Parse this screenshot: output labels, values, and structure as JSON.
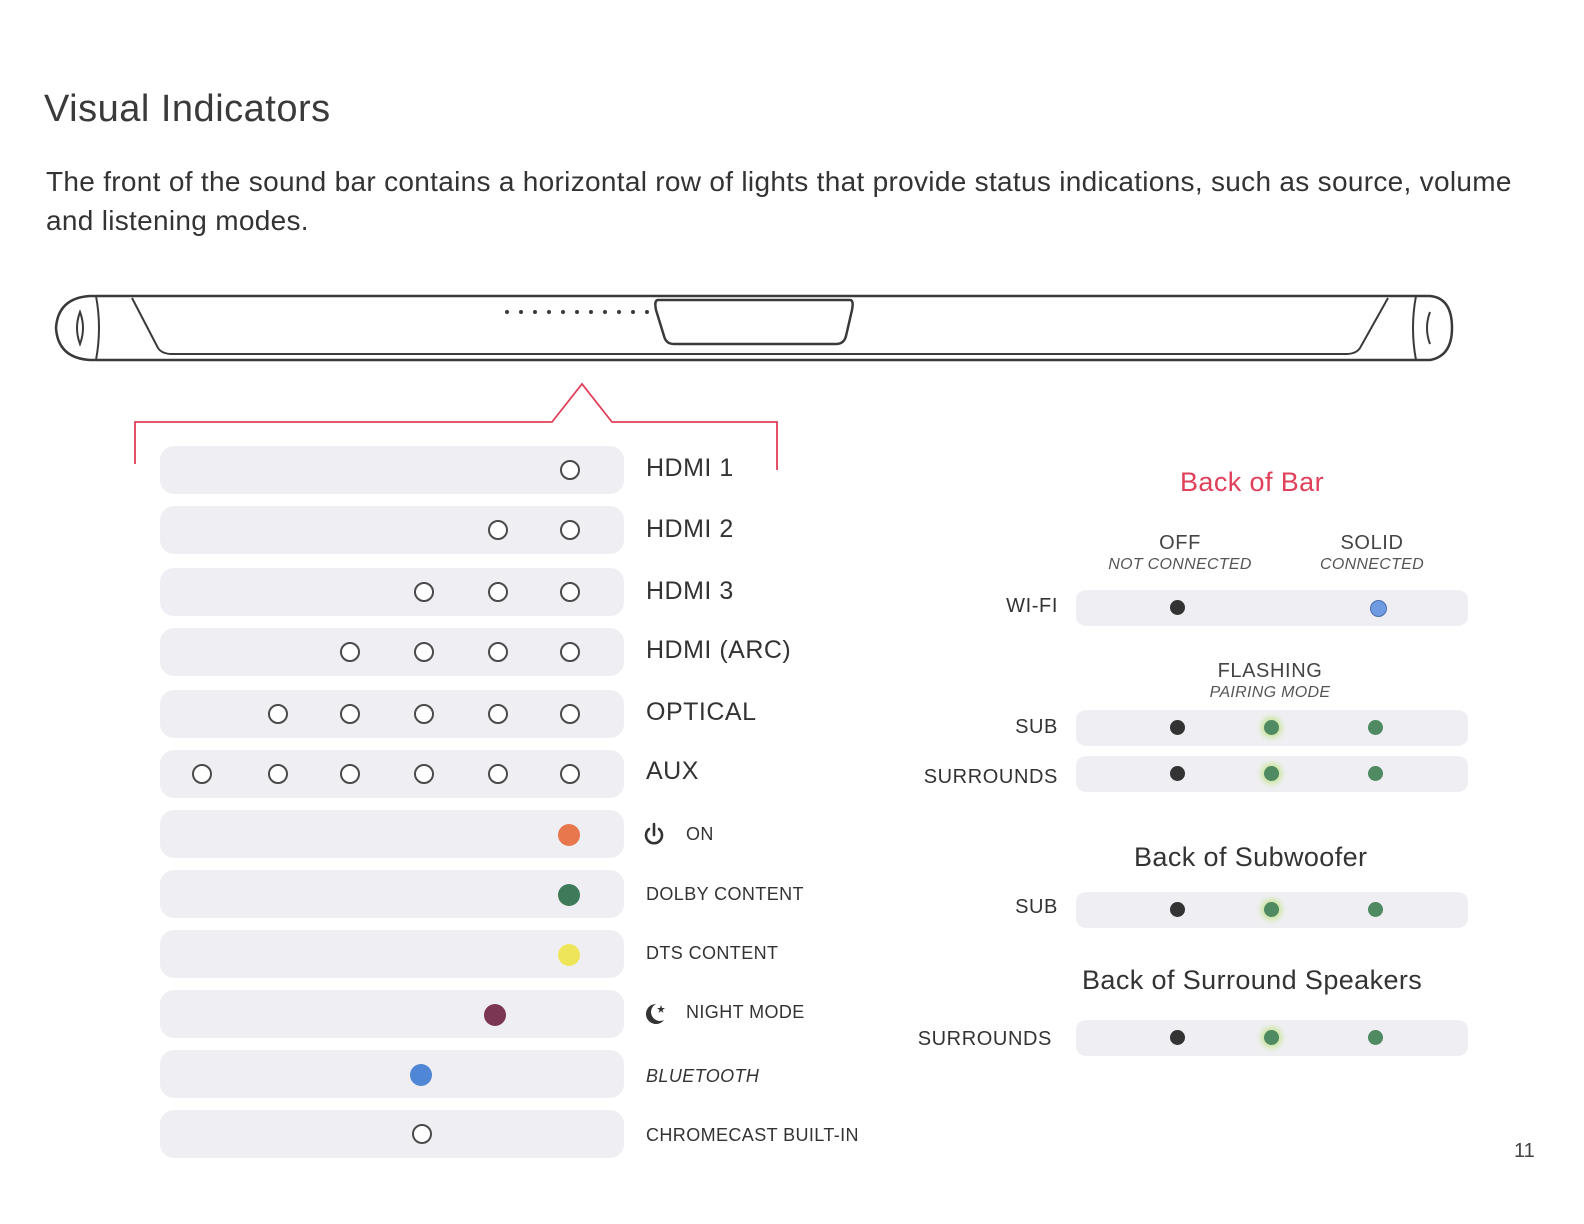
{
  "title": "Visual Indicators",
  "intro": "The front of the sound bar contains a horizontal row of lights that provide status indications, such as source, volume and listening modes.",
  "front_rows": [
    {
      "label": "HDMI 1"
    },
    {
      "label": "HDMI 2"
    },
    {
      "label": "HDMI 3"
    },
    {
      "label": "HDMI (ARC)"
    },
    {
      "label": "OPTICAL"
    },
    {
      "label": "AUX"
    },
    {
      "label": "ON",
      "icon": "power-icon"
    },
    {
      "label": "DOLBY CONTENT"
    },
    {
      "label": "DTS CONTENT"
    },
    {
      "label": "NIGHT MODE",
      "icon": "moon-star-icon"
    },
    {
      "label": "BLUETOOTH"
    },
    {
      "label": "CHROMECAST BUILT-IN"
    }
  ],
  "colors": {
    "accent": "#e0405a",
    "on": "#e8774e",
    "dolby": "#3f7b5a",
    "dts": "#efe55a",
    "night_mode": "#7a3652",
    "bluetooth": "#4f86d6",
    "dark": "#333333",
    "solid_wifi": "#6f9be0",
    "green": "#4f8a62",
    "flash_glow": "#c9e49b"
  },
  "back_of_bar": {
    "title": "Back of Bar",
    "off": {
      "heading": "OFF",
      "sub": "NOT CONNECTED"
    },
    "solid": {
      "heading": "SOLID",
      "sub": "CONNECTED"
    },
    "flashing": {
      "heading": "FLASHING",
      "sub": "PAIRING MODE"
    },
    "rows": [
      {
        "label": "WI-FI"
      },
      {
        "label": "SUB"
      },
      {
        "label": "SURROUNDS"
      }
    ]
  },
  "back_of_subwoofer": {
    "title": "Back of Subwoofer",
    "rows": [
      {
        "label": "SUB"
      }
    ]
  },
  "back_of_surround": {
    "title": "Back of Surround Speakers",
    "rows": [
      {
        "label": "SURROUNDS"
      }
    ]
  },
  "page_number": "11"
}
